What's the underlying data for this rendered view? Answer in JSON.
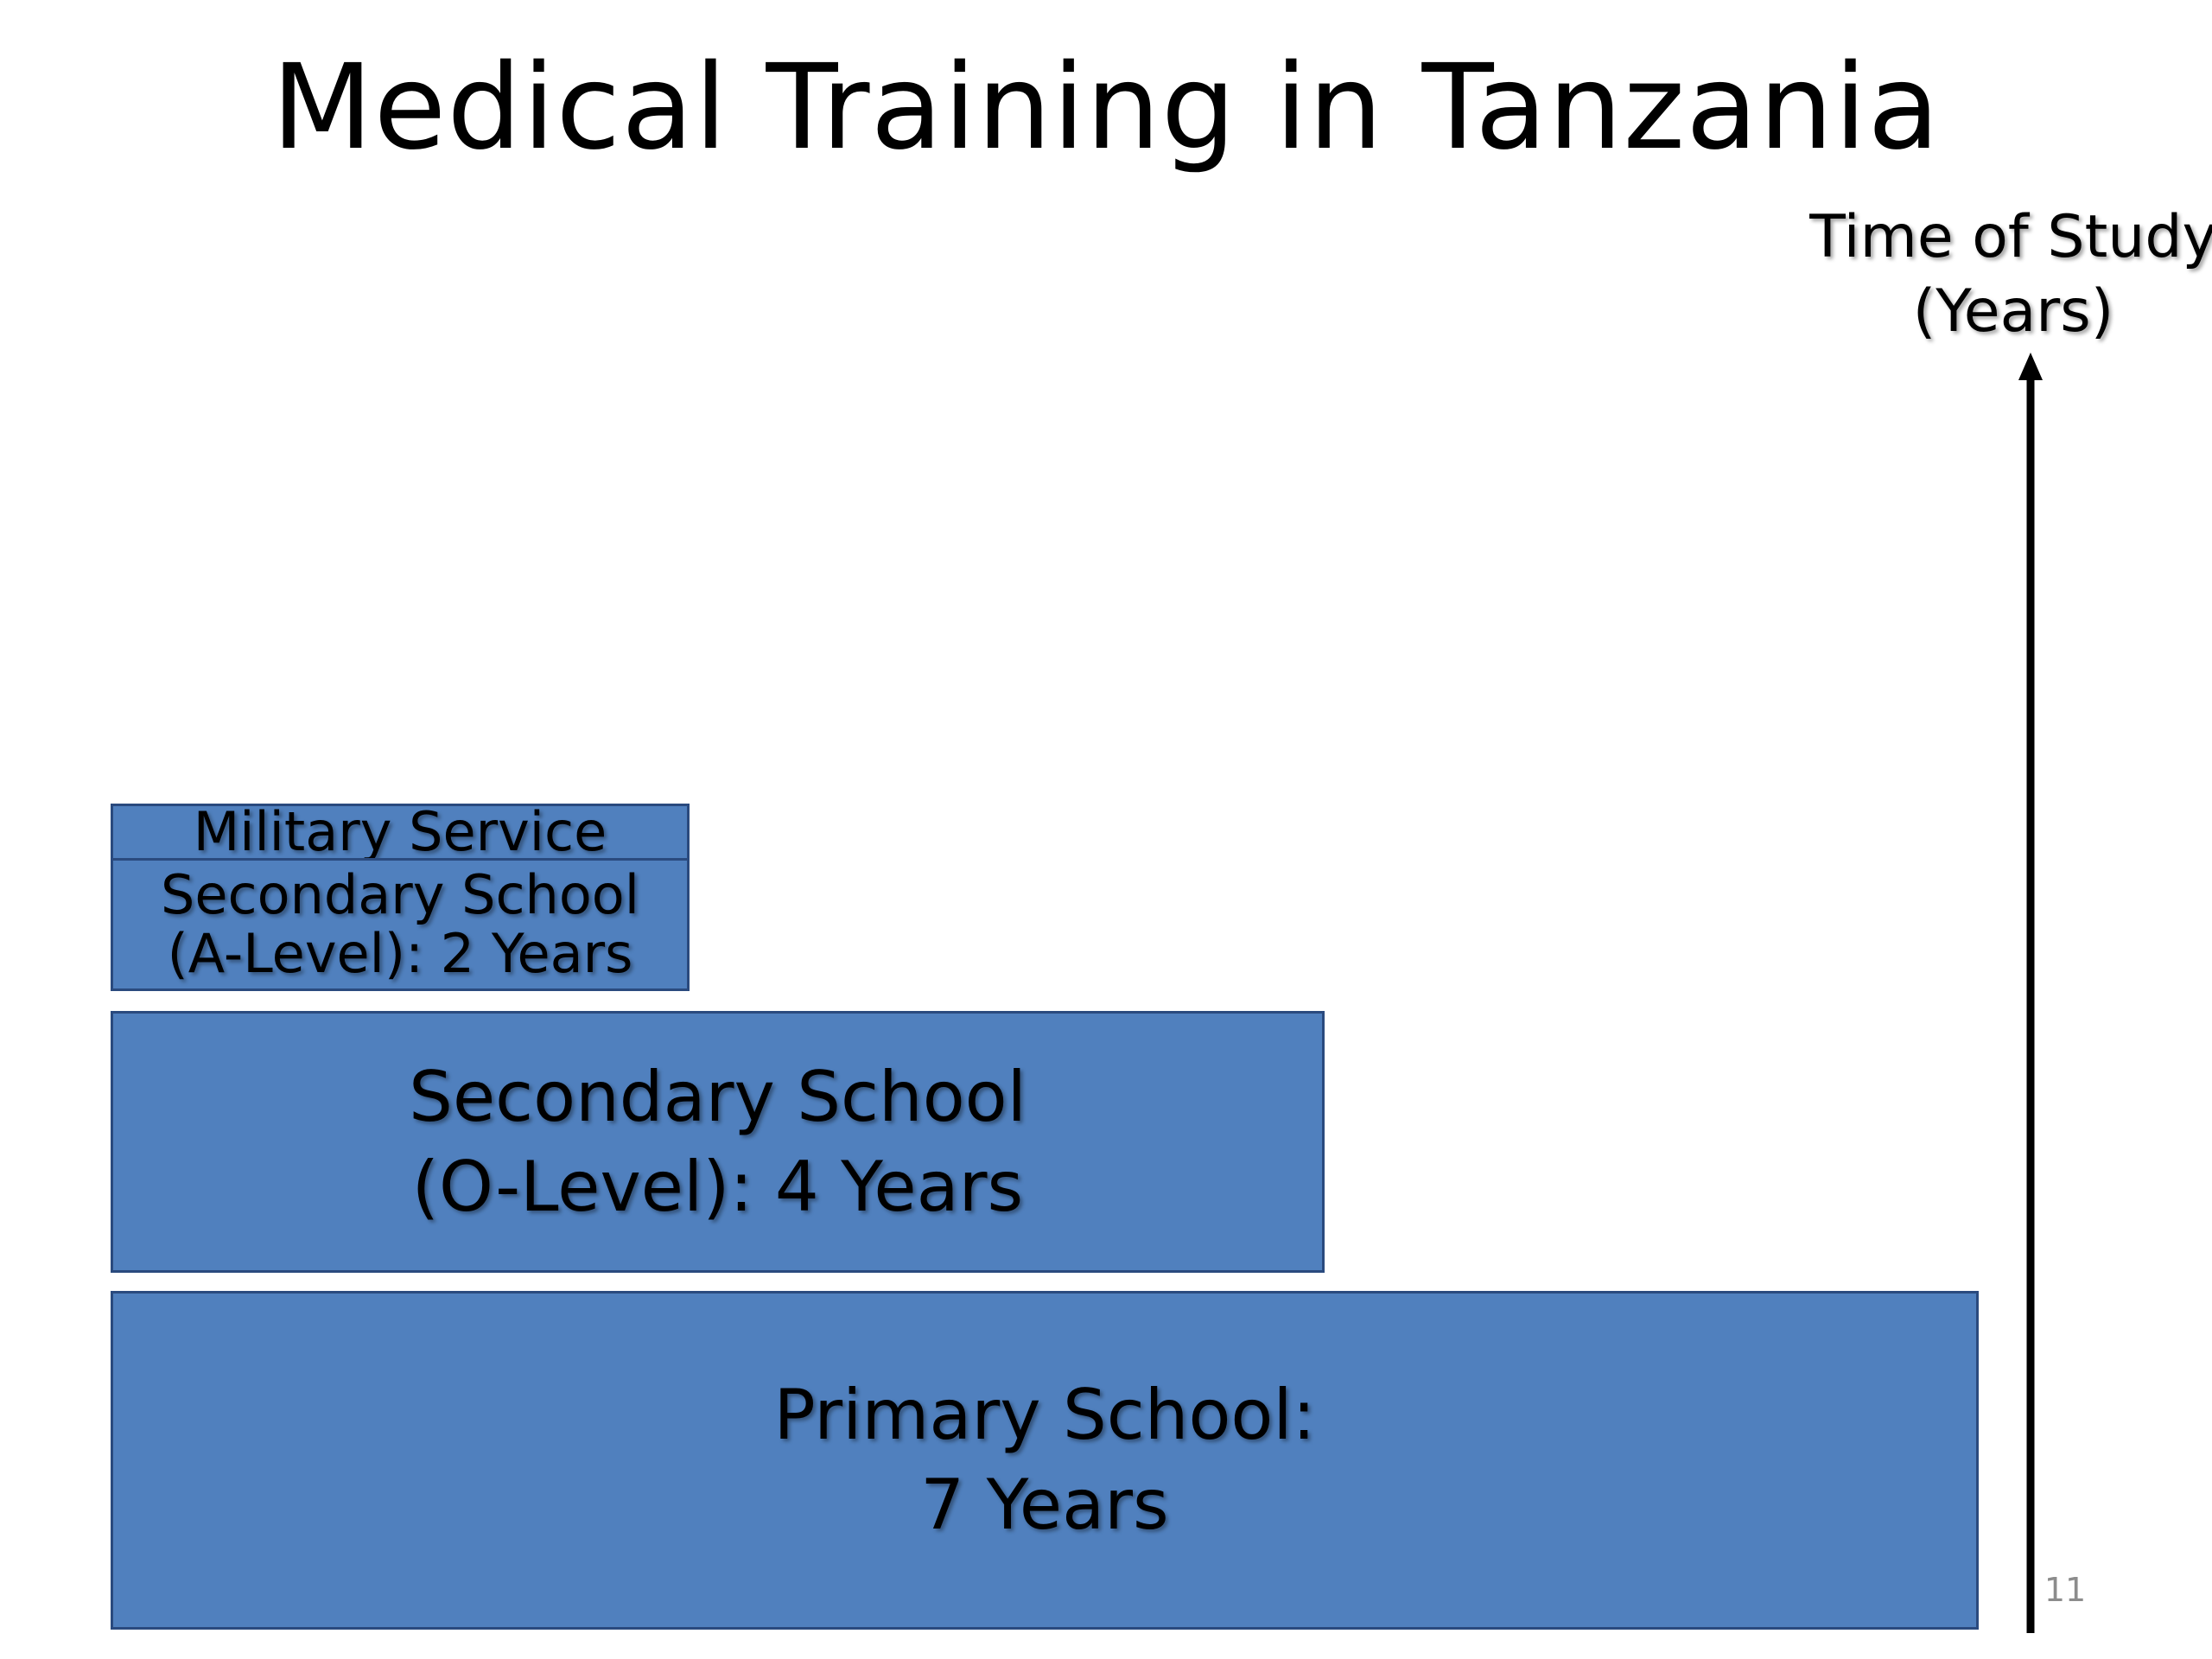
{
  "title": "Medical Training in Tanzania",
  "axis": {
    "label_line1": "Time of Study",
    "label_line2": "(Years)"
  },
  "blocks": {
    "military": {
      "line1": "Military Service"
    },
    "a_level": {
      "line1": "Secondary School",
      "line2": "(A-Level): 2 Years"
    },
    "o_level": {
      "line1": "Secondary School",
      "line2": "(O-Level): 4 Years"
    },
    "primary": {
      "line1": "Primary School:",
      "line2": "7 Years"
    }
  },
  "page_number": "11",
  "colors": {
    "block_fill": "#5080be",
    "block_border": "#2a4a7e",
    "axis": "#000000"
  }
}
